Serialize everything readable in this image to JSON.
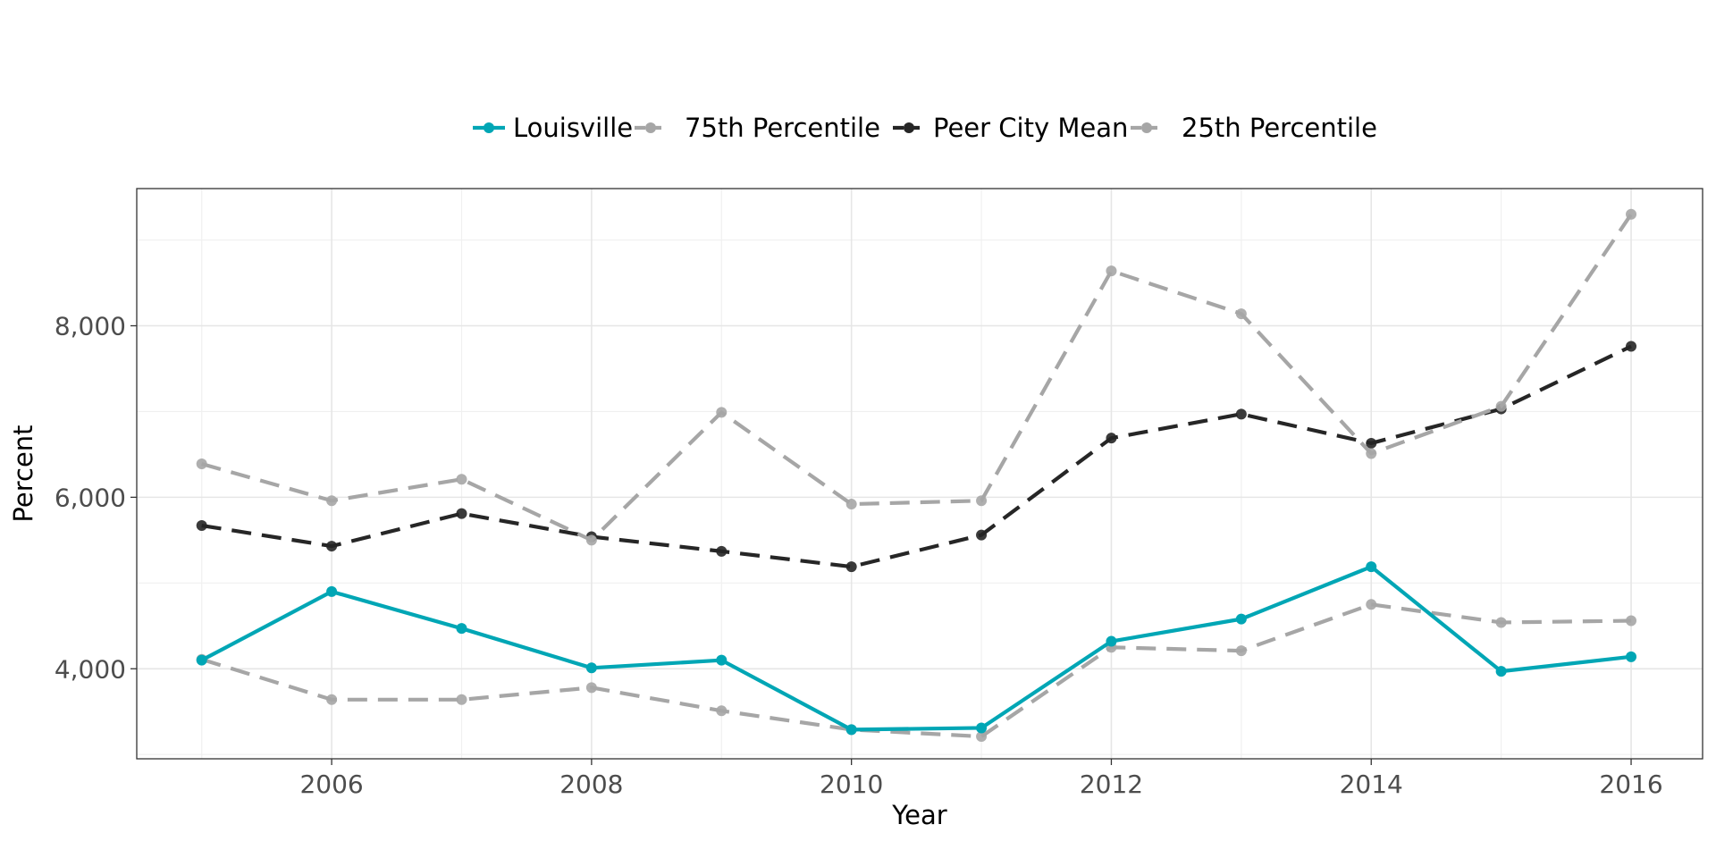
{
  "chart_data": {
    "type": "line",
    "title": "",
    "xlabel": "Year",
    "ylabel": "Percent",
    "x": [
      2005,
      2006,
      2007,
      2008,
      2009,
      2010,
      2011,
      2012,
      2013,
      2014,
      2015,
      2016
    ],
    "xlim": [
      2004.5,
      2016.55
    ],
    "ylim": [
      2950,
      9600
    ],
    "x_ticks": [
      2006,
      2008,
      2010,
      2012,
      2014,
      2016
    ],
    "x_tick_labels": [
      "2006",
      "2008",
      "2010",
      "2012",
      "2014",
      "2016"
    ],
    "y_ticks": [
      4000,
      6000,
      8000
    ],
    "y_tick_labels": [
      "4,000",
      "6,000",
      "8,000"
    ],
    "grid": true,
    "legend_position": "top",
    "series": [
      {
        "name": "Louisville",
        "color": "#00a6b5",
        "dashed": false,
        "values": [
          4100,
          4900,
          4470,
          4010,
          4100,
          3290,
          3310,
          4320,
          4580,
          5190,
          3970,
          4140
        ]
      },
      {
        "name": "75th Percentile",
        "color": "#a6a6a6",
        "dashed": true,
        "values": [
          6390,
          5960,
          6210,
          5500,
          6990,
          5920,
          5960,
          8640,
          8140,
          6510,
          7060,
          9300
        ]
      },
      {
        "name": "Peer City Mean",
        "color": "#262626",
        "dashed": true,
        "values": [
          5670,
          5430,
          5810,
          5540,
          5370,
          5190,
          5560,
          6690,
          6970,
          6630,
          7030,
          7760
        ]
      },
      {
        "name": "25th Percentile",
        "color": "#a6a6a6",
        "dashed": true,
        "values": [
          4110,
          3640,
          3640,
          3780,
          3510,
          3290,
          3210,
          4250,
          4210,
          4750,
          4540,
          4560
        ]
      }
    ]
  }
}
